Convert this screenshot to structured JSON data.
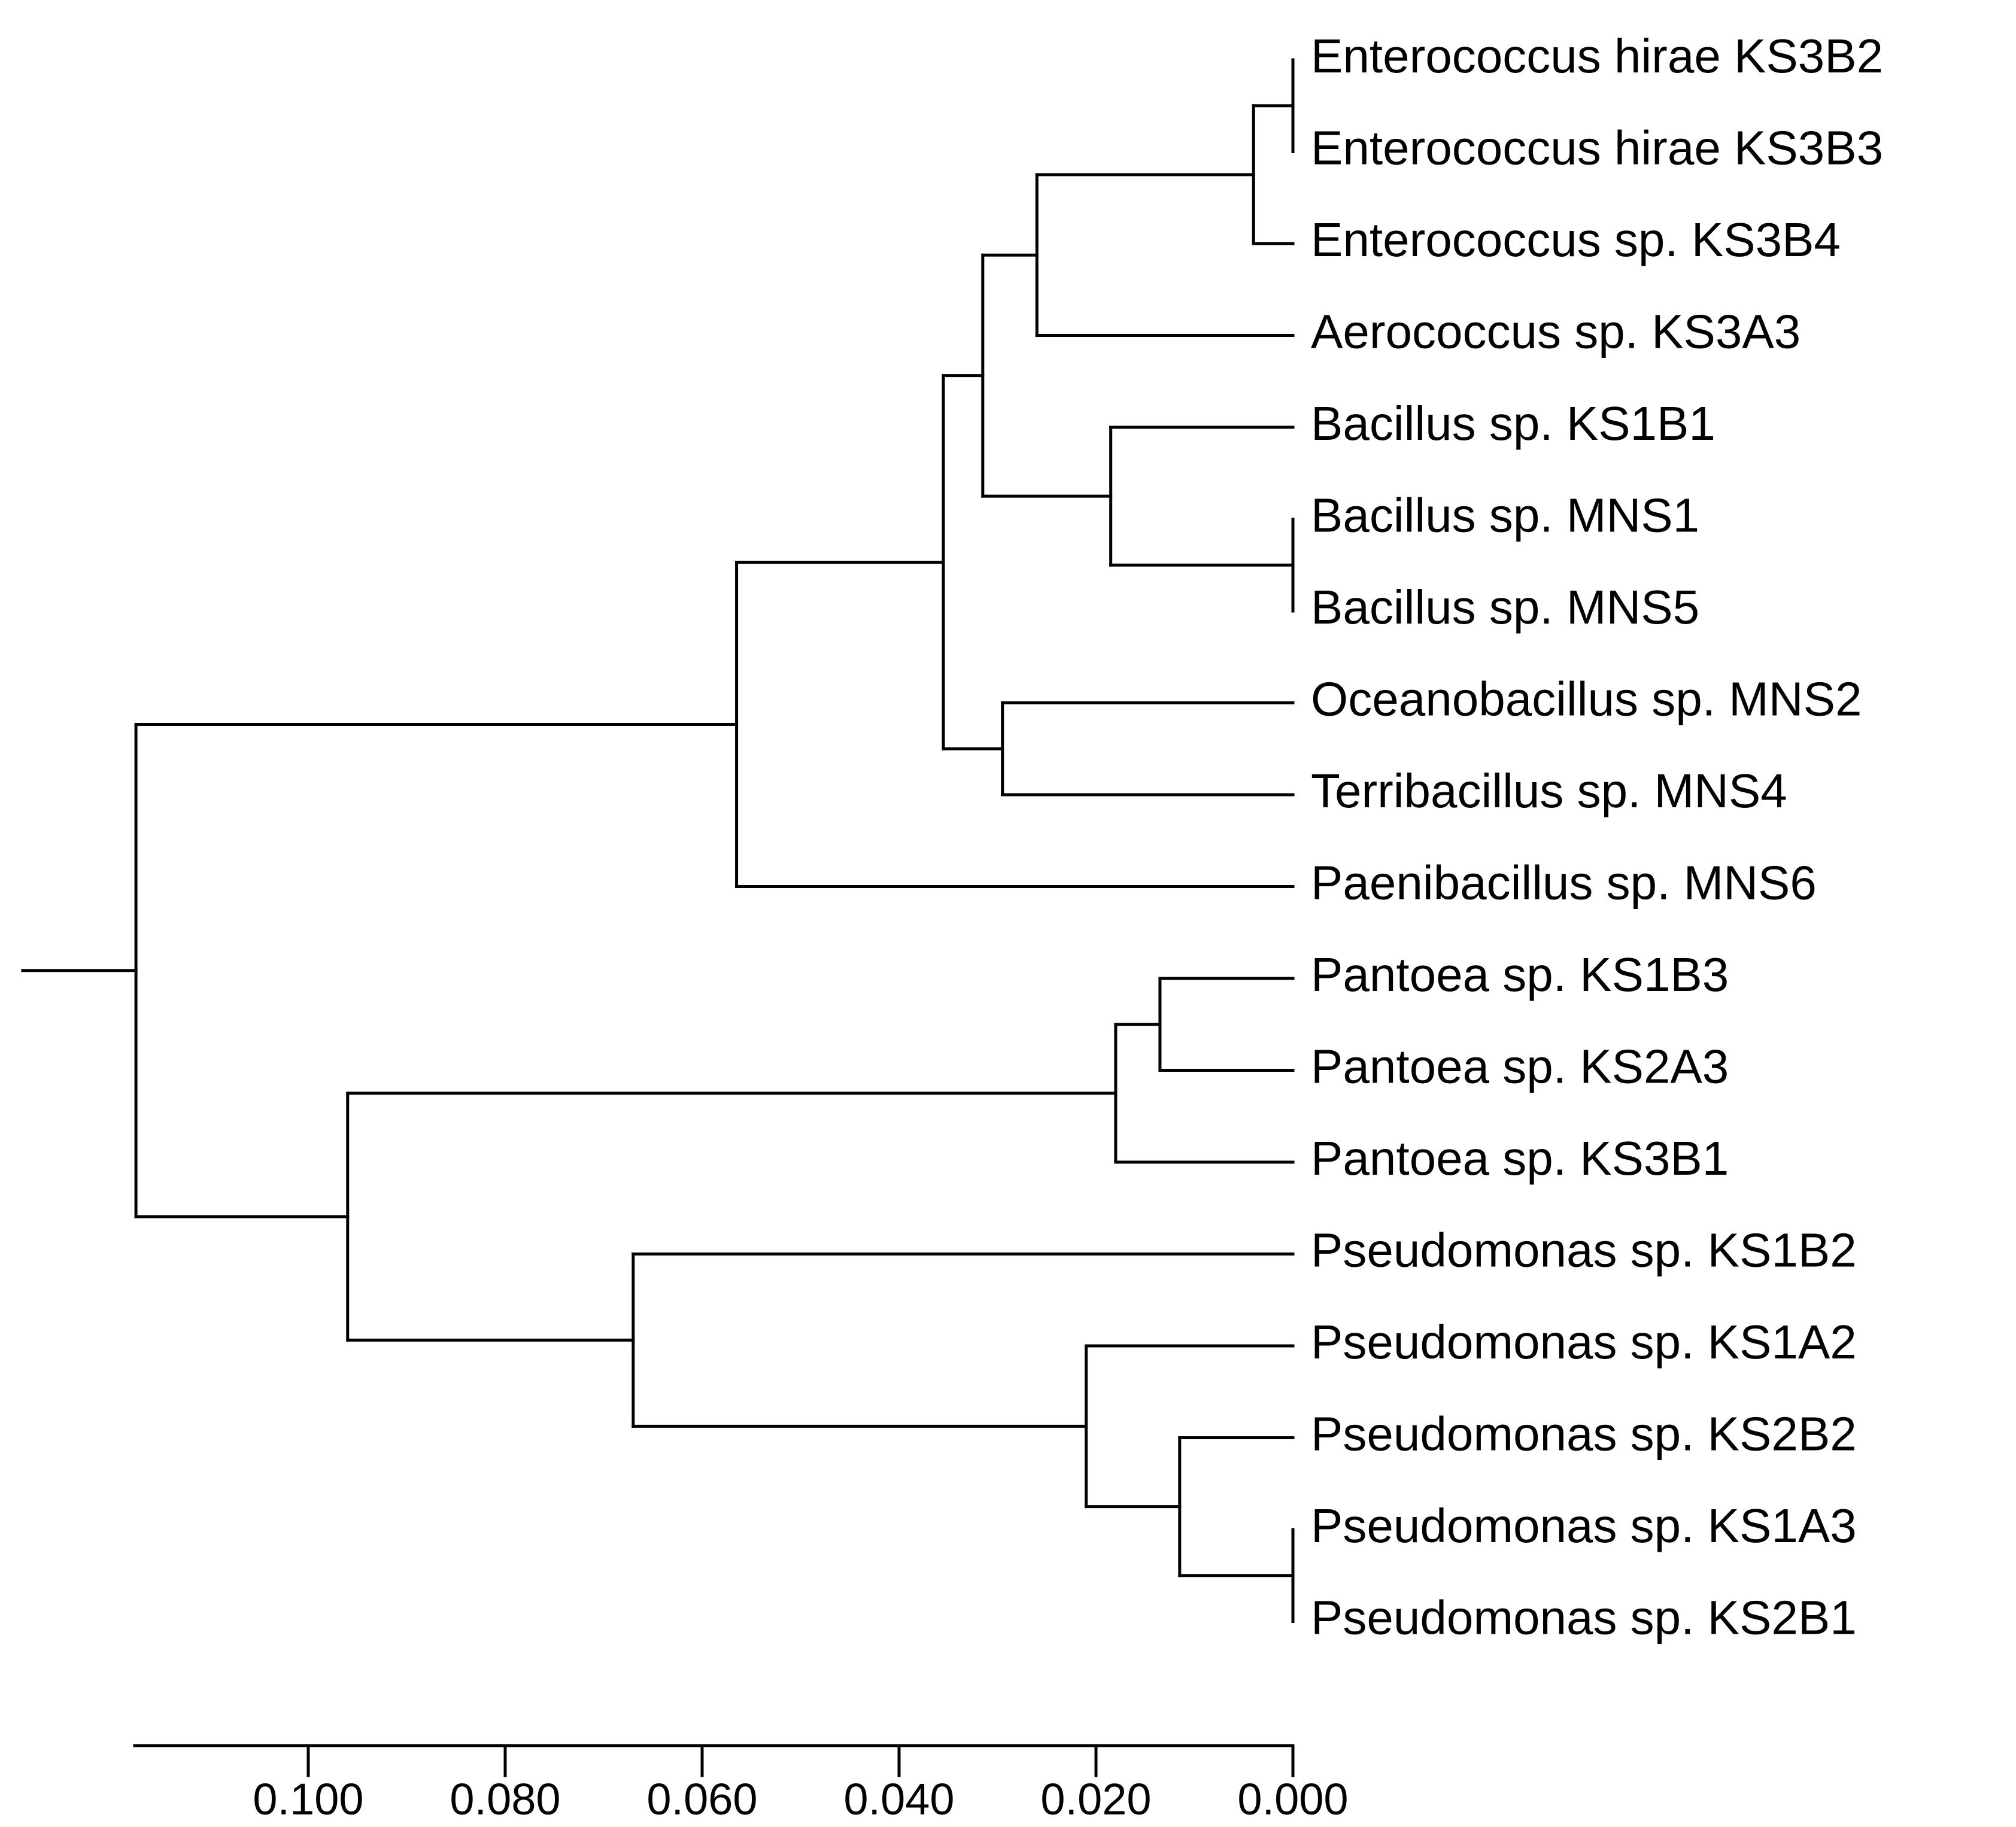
{
  "chart_data": {
    "type": "dendrogram",
    "title": "",
    "xlabel": "",
    "axis": {
      "direction": "decreasing-right",
      "range": [
        0.118,
        0.0
      ],
      "ticks": [
        0.1,
        0.08,
        0.06,
        0.04,
        0.02,
        0.0
      ],
      "tick_labels": [
        "0.100",
        "0.080",
        "0.060",
        "0.040",
        "0.020",
        "0.000"
      ]
    },
    "leaves": [
      "Enterococcus hirae KS3B2",
      "Enterococcus hirae KS3B3",
      "Enterococcus sp. KS3B4",
      "Aerococcus sp. KS3A3",
      "Bacillus sp. KS1B1",
      "Bacillus sp. MNS1",
      "Bacillus sp. MNS5",
      "Oceanobacillus sp. MNS2",
      "Terribacillus sp. MNS4",
      "Paenibacillus sp. MNS6",
      "Pantoea sp. KS1B3",
      "Pantoea sp. KS2A3",
      "Pantoea sp. KS3B1",
      "Pseudomonas sp. KS1B2",
      "Pseudomonas sp. KS1A2",
      "Pseudomonas sp. KS2B2",
      "Pseudomonas sp. KS1A3",
      "Pseudomonas sp. KS2B1"
    ],
    "merges": [
      {
        "id": "n1",
        "children": [
          "Enterococcus hirae KS3B2",
          "Enterococcus hirae KS3B3"
        ],
        "height": 0.0
      },
      {
        "id": "n2",
        "children": [
          "n1",
          "Enterococcus sp. KS3B4"
        ],
        "height": 0.004
      },
      {
        "id": "n3",
        "children": [
          "n2",
          "Aerococcus sp. KS3A3"
        ],
        "height": 0.026
      },
      {
        "id": "n4",
        "children": [
          "Bacillus sp. MNS1",
          "Bacillus sp. MNS5"
        ],
        "height": 0.0
      },
      {
        "id": "n5",
        "children": [
          "Bacillus sp. KS1B1",
          "n4"
        ],
        "height": 0.0185
      },
      {
        "id": "n6",
        "children": [
          "n3",
          "n5"
        ],
        "height": 0.0315
      },
      {
        "id": "n7",
        "children": [
          "Oceanobacillus sp. MNS2",
          "Terribacillus sp. MNS4"
        ],
        "height": 0.0295
      },
      {
        "id": "n8",
        "children": [
          "n6",
          "n7"
        ],
        "height": 0.0355
      },
      {
        "id": "n9",
        "children": [
          "n8",
          "Paenibacillus sp. MNS6"
        ],
        "height": 0.0565
      },
      {
        "id": "n10",
        "children": [
          "Pantoea sp. KS1B3",
          "Pantoea sp. KS2A3"
        ],
        "height": 0.0135
      },
      {
        "id": "n11",
        "children": [
          "n10",
          "Pantoea sp. KS3B1"
        ],
        "height": 0.018
      },
      {
        "id": "n12",
        "children": [
          "Pseudomonas sp. KS1A3",
          "Pseudomonas sp. KS2B1"
        ],
        "height": 0.0
      },
      {
        "id": "n13",
        "children": [
          "Pseudomonas sp. KS2B2",
          "n12"
        ],
        "height": 0.0115
      },
      {
        "id": "n14",
        "children": [
          "Pseudomonas sp. KS1A2",
          "n13"
        ],
        "height": 0.021
      },
      {
        "id": "n15",
        "children": [
          "Pseudomonas sp. KS1B2",
          "n14"
        ],
        "height": 0.067
      },
      {
        "id": "n16",
        "children": [
          "n11",
          "n15"
        ],
        "height": 0.096
      },
      {
        "id": "root",
        "children": [
          "n9",
          "n16"
        ],
        "height": 0.1175
      }
    ],
    "root_stem_height": 0.129
  }
}
